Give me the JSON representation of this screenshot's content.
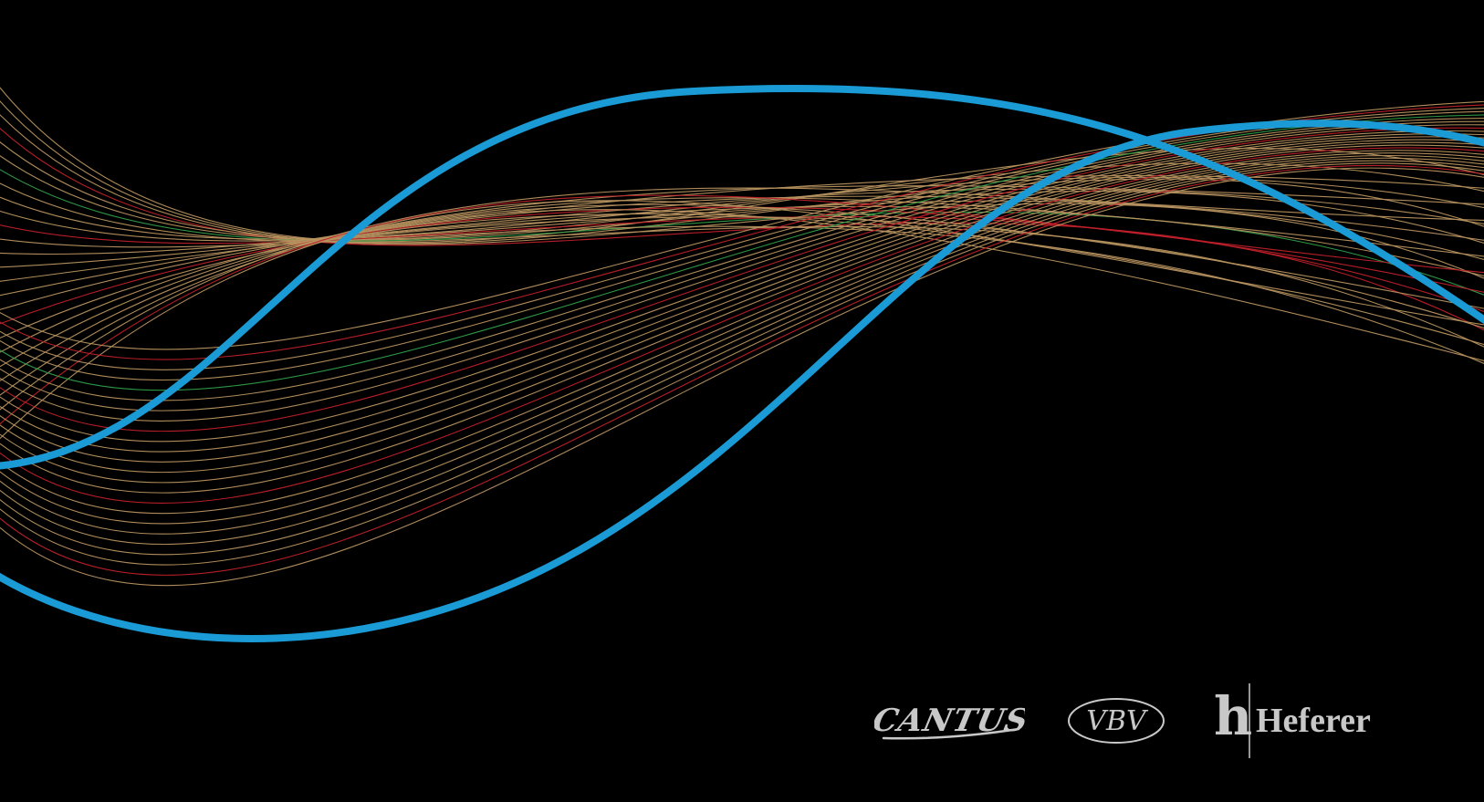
{
  "background_color": "#000000",
  "colors": {
    "accent_blue": "#1a9bd6",
    "gold_line": "#b7925f",
    "red_line": "#c0202a",
    "green_line": "#2f9e4a",
    "logo_gray": "#c8c8c8"
  },
  "logos": {
    "cantus": {
      "text": "CANTUS"
    },
    "vbv": {
      "text": "VBV"
    },
    "heferer": {
      "text": "Heferer",
      "mark": "h"
    }
  }
}
